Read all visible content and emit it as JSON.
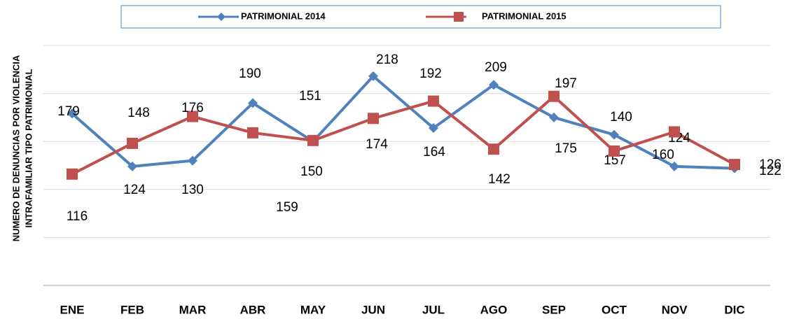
{
  "chart_data": {
    "type": "line",
    "y_label_lines": [
      "NUMERO DE DENUNCIAS POR VIOLENCIA",
      "INTRAFAMILIAR TIPO PATRIMONIAL"
    ],
    "categories": [
      "ENE",
      "FEB",
      "MAR",
      "ABR",
      "MAY",
      "JUN",
      "JUL",
      "AGO",
      "SEP",
      "OCT",
      "NOV",
      "DIC"
    ],
    "series": [
      {
        "name": "PATRIMONIAL 2014",
        "color": "#4f81bd",
        "marker": "diamond",
        "values": [
          179,
          124,
          130,
          190,
          150,
          218,
          164,
          209,
          175,
          157,
          124,
          122
        ]
      },
      {
        "name": "PATRIMONIAL 2015",
        "color": "#c0504d",
        "marker": "square",
        "values": [
          116,
          148,
          176,
          159,
          151,
          174,
          192,
          142,
          197,
          140,
          160,
          126
        ]
      }
    ],
    "ylim": [
      0,
      250
    ],
    "yticks": [
      0,
      50,
      100,
      150,
      200,
      250
    ],
    "grid": true,
    "legend": "top"
  }
}
